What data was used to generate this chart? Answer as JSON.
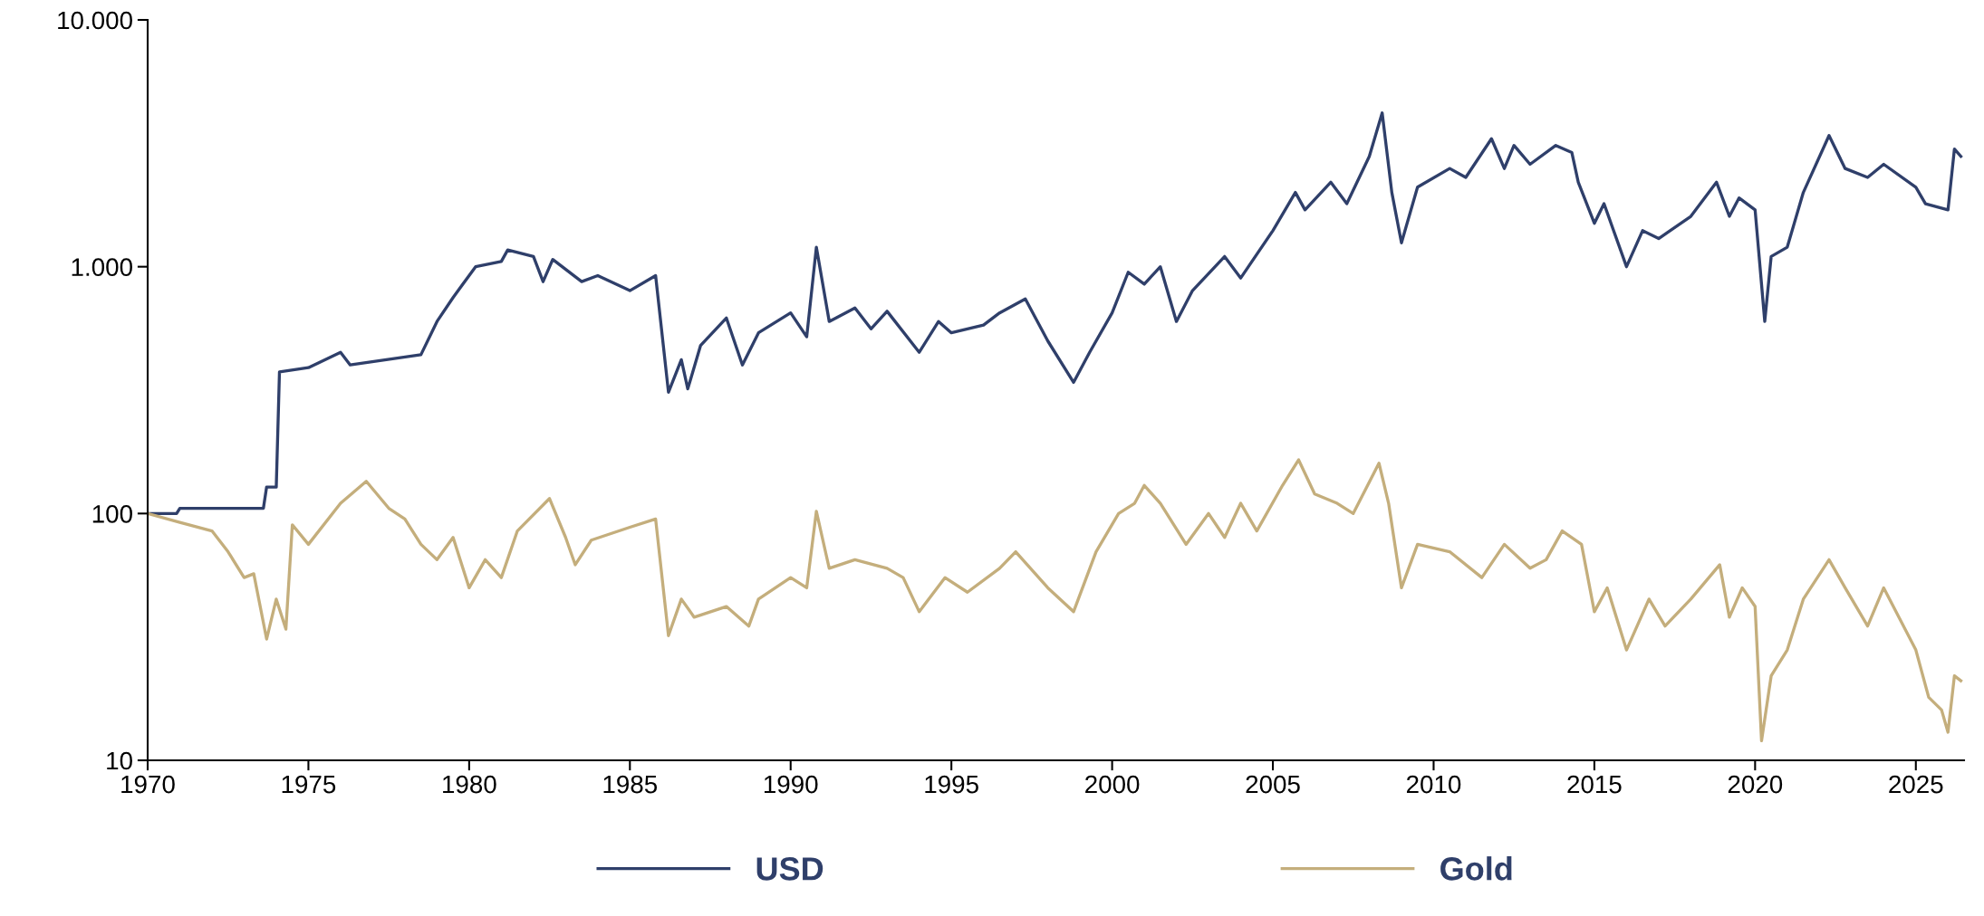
{
  "chart_data": {
    "type": "line",
    "log": "y",
    "grid": false,
    "legend": "bottom",
    "marker": "none",
    "line_style": "solid",
    "xlim": [
      1970,
      2026.5
    ],
    "xticks": [
      1970,
      1975,
      1980,
      1985,
      1990,
      1995,
      2000,
      2005,
      2010,
      2015,
      2020,
      2025
    ],
    "ylim": [
      10,
      10000
    ],
    "yticks": [
      10,
      100,
      {
        "value": 1000,
        "label": "1.000"
      },
      {
        "value": 10000,
        "label": "10.000"
      }
    ],
    "series": [
      {
        "name": "USD",
        "color": "#2f3f6a",
        "x": [
          1970,
          1970.9,
          1971,
          1973.6,
          1973.7,
          1974.0,
          1974.1,
          1975,
          1976,
          1976.3,
          1978.5,
          1979,
          1979.5,
          1980.2,
          1981,
          1981.2,
          1982,
          1982.3,
          1982.6,
          1983.5,
          1984,
          1985,
          1985.8,
          1986.2,
          1986.6,
          1986.8,
          1987.2,
          1988,
          1988.5,
          1989,
          1990,
          1990.5,
          1990.8,
          1991.2,
          1992,
          1992.5,
          1993,
          1994,
          1994.6,
          1995,
          1996,
          1996.5,
          1997.3,
          1998,
          1998.8,
          1999.3,
          2000,
          2000.5,
          2001,
          2001.5,
          2002,
          2002.5,
          2003.5,
          2004,
          2005,
          2005.7,
          2006,
          2006.8,
          2007.3,
          2008,
          2008.4,
          2008.7,
          2009,
          2009.5,
          2010.5,
          2011,
          2011.8,
          2012.2,
          2012.5,
          2013,
          2013.8,
          2014.3,
          2014.5,
          2015,
          2015.3,
          2016,
          2016.5,
          2017,
          2018,
          2018.8,
          2019.2,
          2019.5,
          2020,
          2020.3,
          2020.5,
          2021,
          2021.5,
          2022.3,
          2022.8,
          2023.5,
          2024,
          2025,
          2025.3,
          2026,
          2026.2,
          2026.4
        ],
        "values": [
          100,
          100,
          105,
          105,
          128,
          128,
          375,
          390,
          450,
          400,
          440,
          600,
          750,
          1000,
          1050,
          1170,
          1100,
          870,
          1070,
          870,
          920,
          800,
          920,
          310,
          420,
          320,
          480,
          620,
          400,
          540,
          650,
          520,
          1200,
          600,
          680,
          560,
          660,
          450,
          600,
          540,
          580,
          650,
          740,
          500,
          340,
          450,
          650,
          950,
          850,
          1000,
          600,
          800,
          1100,
          900,
          1400,
          2000,
          1700,
          2200,
          1800,
          2800,
          4200,
          2000,
          1250,
          2100,
          2500,
          2300,
          3300,
          2500,
          3100,
          2600,
          3100,
          2900,
          2200,
          1500,
          1800,
          1000,
          1400,
          1300,
          1600,
          2200,
          1600,
          1900,
          1700,
          600,
          1100,
          1200,
          2000,
          3400,
          2500,
          2300,
          2600,
          2100,
          1800,
          1700,
          3000,
          2800
        ]
      },
      {
        "name": "Gold",
        "color": "#c4ae7c",
        "x": [
          1970,
          1971,
          1972,
          1972.5,
          1973,
          1973.3,
          1973.7,
          1974,
          1974.3,
          1974.5,
          1975,
          1976,
          1976.8,
          1977.5,
          1978,
          1978.5,
          1979,
          1979.5,
          1980,
          1980.5,
          1981,
          1981.5,
          1982.5,
          1983,
          1983.3,
          1983.8,
          1985,
          1985.8,
          1986.2,
          1986.6,
          1987,
          1988,
          1988.7,
          1989,
          1990,
          1990.5,
          1990.8,
          1991.2,
          1992,
          1993,
          1993.5,
          1994,
          1994.8,
          1995.5,
          1996.5,
          1997,
          1998,
          1998.8,
          1999.5,
          2000.2,
          2000.7,
          2001,
          2001.5,
          2002.3,
          2003,
          2003.5,
          2004,
          2004.5,
          2005.3,
          2005.8,
          2006.3,
          2007,
          2007.5,
          2008.3,
          2008.6,
          2009,
          2009.5,
          2010.5,
          2011.5,
          2012.2,
          2013,
          2013.5,
          2014,
          2014.6,
          2015,
          2015.4,
          2016,
          2016.7,
          2017.2,
          2018,
          2018.9,
          2019.2,
          2019.6,
          2020,
          2020.2,
          2020.5,
          2021,
          2021.5,
          2022.3,
          2022.8,
          2023.5,
          2024,
          2025,
          2025.4,
          2025.8,
          2026,
          2026.2,
          2026.4
        ],
        "values": [
          100,
          92,
          85,
          70,
          55,
          57,
          31,
          45,
          34,
          90,
          75,
          110,
          135,
          105,
          95,
          75,
          65,
          80,
          50,
          65,
          55,
          85,
          115,
          80,
          62,
          78,
          88,
          95,
          32,
          45,
          38,
          42,
          35,
          45,
          55,
          50,
          102,
          60,
          65,
          60,
          55,
          40,
          55,
          48,
          60,
          70,
          50,
          40,
          70,
          100,
          110,
          130,
          110,
          75,
          100,
          80,
          110,
          85,
          130,
          165,
          120,
          110,
          100,
          160,
          110,
          50,
          75,
          70,
          55,
          75,
          60,
          65,
          85,
          75,
          40,
          50,
          28,
          45,
          35,
          45,
          62,
          38,
          50,
          42,
          12,
          22,
          28,
          45,
          65,
          50,
          35,
          50,
          28,
          18,
          16,
          13,
          22,
          21
        ]
      }
    ]
  }
}
